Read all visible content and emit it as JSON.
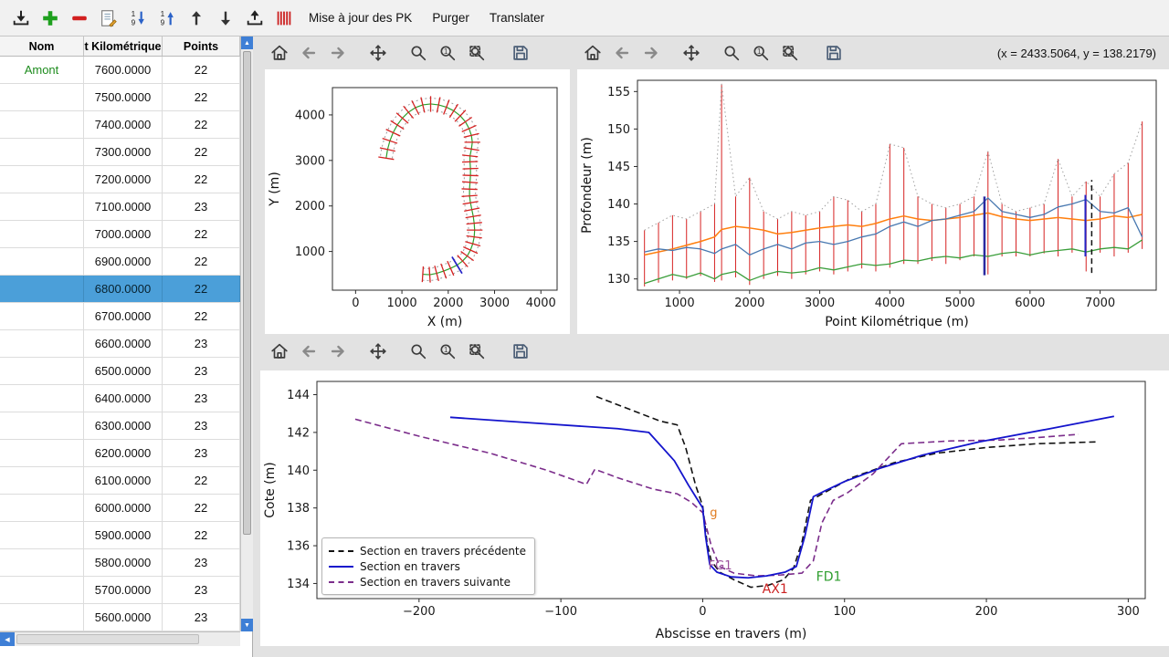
{
  "toolbar": {
    "icon_buttons": [
      "import",
      "add",
      "remove",
      "edit-list",
      "sort-desc",
      "sort-asc",
      "move-up",
      "move-down",
      "export",
      "pk-stripes"
    ],
    "buttons": {
      "update_pk": "Mise à jour des PK",
      "purger": "Purger",
      "translater": "Translater"
    }
  },
  "table": {
    "columns": [
      "Nom",
      "t Kilométrique",
      "Points"
    ],
    "selected_index": 8,
    "rows": [
      {
        "nom": "Amont",
        "pk": "7600.0000",
        "points": "22"
      },
      {
        "nom": "",
        "pk": "7500.0000",
        "points": "22"
      },
      {
        "nom": "",
        "pk": "7400.0000",
        "points": "22"
      },
      {
        "nom": "",
        "pk": "7300.0000",
        "points": "22"
      },
      {
        "nom": "",
        "pk": "7200.0000",
        "points": "22"
      },
      {
        "nom": "",
        "pk": "7100.0000",
        "points": "23"
      },
      {
        "nom": "",
        "pk": "7000.0000",
        "points": "22"
      },
      {
        "nom": "",
        "pk": "6900.0000",
        "points": "22"
      },
      {
        "nom": "",
        "pk": "6800.0000",
        "points": "22"
      },
      {
        "nom": "",
        "pk": "6700.0000",
        "points": "22"
      },
      {
        "nom": "",
        "pk": "6600.0000",
        "points": "23"
      },
      {
        "nom": "",
        "pk": "6500.0000",
        "points": "23"
      },
      {
        "nom": "",
        "pk": "6400.0000",
        "points": "23"
      },
      {
        "nom": "",
        "pk": "6300.0000",
        "points": "23"
      },
      {
        "nom": "",
        "pk": "6200.0000",
        "points": "23"
      },
      {
        "nom": "",
        "pk": "6100.0000",
        "points": "22"
      },
      {
        "nom": "",
        "pk": "6000.0000",
        "points": "22"
      },
      {
        "nom": "",
        "pk": "5900.0000",
        "points": "22"
      },
      {
        "nom": "",
        "pk": "5800.0000",
        "points": "23"
      },
      {
        "nom": "",
        "pk": "5700.0000",
        "points": "23"
      },
      {
        "nom": "",
        "pk": "5600.0000",
        "points": "23"
      }
    ]
  },
  "readout": "(x = 2433.5064,   y = 138.2179)",
  "plot_toolbar_icons": [
    "home",
    "back",
    "forward",
    "pan",
    "zoom",
    "zoom-1",
    "zoom-rect",
    "save"
  ],
  "chart_data": [
    {
      "id": "plan",
      "type": "line",
      "title": "",
      "xlabel": "X (m)",
      "ylabel": "Y (m)",
      "xlim": [
        -500,
        4350
      ],
      "ylim": [
        150,
        4600
      ],
      "xticks": [
        0,
        1000,
        2000,
        3000,
        4000
      ],
      "yticks": [
        1000,
        2000,
        3000,
        4000
      ],
      "margins": {
        "l": 74,
        "r": 14,
        "t": 20,
        "b": 48
      },
      "data": {
        "centerline": [
          [
            1450,
            500
          ],
          [
            1600,
            490
          ],
          [
            1750,
            520
          ],
          [
            1900,
            570
          ],
          [
            2050,
            630
          ],
          [
            2190,
            700
          ],
          [
            2310,
            790
          ],
          [
            2410,
            900
          ],
          [
            2480,
            1030
          ],
          [
            2530,
            1170
          ],
          [
            2560,
            1320
          ],
          [
            2570,
            1470
          ],
          [
            2560,
            1620
          ],
          [
            2540,
            1770
          ],
          [
            2510,
            1920
          ],
          [
            2480,
            2070
          ],
          [
            2460,
            2220
          ],
          [
            2460,
            2370
          ],
          [
            2470,
            2520
          ],
          [
            2480,
            2670
          ],
          [
            2480,
            2820
          ],
          [
            2470,
            2970
          ],
          [
            2470,
            3100
          ],
          [
            2500,
            3250
          ],
          [
            2520,
            3400
          ],
          [
            2500,
            3550
          ],
          [
            2450,
            3700
          ],
          [
            2370,
            3850
          ],
          [
            2260,
            3980
          ],
          [
            2120,
            4090
          ],
          [
            1960,
            4170
          ],
          [
            1790,
            4220
          ],
          [
            1620,
            4240
          ],
          [
            1450,
            4220
          ],
          [
            1290,
            4160
          ],
          [
            1140,
            4060
          ],
          [
            1010,
            3930
          ],
          [
            900,
            3780
          ],
          [
            810,
            3610
          ],
          [
            740,
            3430
          ],
          [
            690,
            3240
          ],
          [
            660,
            3050
          ]
        ]
      },
      "series": [
        {
          "kind": "offset",
          "points": "$centerline",
          "offset": 130,
          "color": "#9c9c9c",
          "width": 1,
          "dash": "2 3"
        },
        {
          "kind": "offset",
          "points": "$centerline",
          "offset": -130,
          "color": "#9c9c9c",
          "width": 1,
          "dash": "2 3"
        },
        {
          "kind": "line",
          "points": "$centerline",
          "color": "#2ca02c",
          "width": 1.2
        },
        {
          "kind": "ticks",
          "points": "$centerline",
          "halflen": 170,
          "color": "#d62222",
          "width": 1.3
        },
        {
          "kind": "ticks",
          "points": "$centerline",
          "halflen": 210,
          "color": "#2424c8",
          "width": 1.7,
          "indices": [
            5
          ]
        }
      ]
    },
    {
      "id": "profile",
      "type": "line",
      "title": "",
      "xlabel": "Point Kilométrique (m)",
      "ylabel": "Profondeur (m)",
      "xlim": [
        400,
        7800
      ],
      "ylim": [
        128.5,
        156.5
      ],
      "xticks": [
        1000,
        2000,
        3000,
        4000,
        5000,
        6000,
        7000
      ],
      "yticks": [
        130,
        135,
        140,
        145,
        150,
        155
      ],
      "margins": {
        "l": 66,
        "r": 14,
        "t": 12,
        "b": 48
      },
      "data": {
        "pk": [
          500,
          700,
          900,
          1100,
          1300,
          1500,
          1600,
          1800,
          2000,
          2200,
          2400,
          2600,
          2800,
          3000,
          3200,
          3400,
          3600,
          3800,
          4000,
          4200,
          4400,
          4600,
          4800,
          5000,
          5200,
          5400,
          5600,
          5800,
          6000,
          6200,
          6400,
          6600,
          6800,
          7000,
          7200,
          7400,
          7600
        ],
        "red_top": [
          136.5,
          137.5,
          138.5,
          138,
          139,
          140,
          156,
          141,
          143.5,
          139,
          138,
          139,
          138.5,
          139,
          141,
          140.5,
          139,
          140,
          148,
          147.5,
          141,
          140,
          139.5,
          140,
          141,
          147,
          140,
          139,
          139.5,
          140,
          146,
          141,
          143,
          141,
          144,
          145.5,
          151
        ],
        "red_bot": [
          129,
          129.5,
          129.8,
          130,
          130.4,
          129.6,
          129.8,
          130.2,
          129.2,
          130,
          130.4,
          130,
          130.6,
          131,
          130.6,
          131,
          131.4,
          131,
          131.5,
          132,
          132,
          132.4,
          132,
          132.5,
          133,
          130.6,
          133,
          133,
          133,
          133.4,
          133,
          133.5,
          131,
          133.5,
          133,
          133.5,
          134
        ],
        "blue": [
          133.6,
          134,
          133.8,
          134.2,
          134,
          133.4,
          134,
          134.6,
          133.2,
          134,
          134.6,
          134,
          134.8,
          135,
          134.6,
          135,
          135.6,
          136,
          137,
          137.6,
          137,
          137.8,
          138,
          138.5,
          139,
          140.8,
          139,
          138.6,
          138.2,
          138.6,
          139.6,
          140,
          140.6,
          139,
          138.8,
          139.5,
          135.6
        ],
        "orange": [
          133.2,
          133.6,
          134,
          134.5,
          135,
          135.6,
          136.6,
          137,
          136.8,
          136.5,
          136,
          136.2,
          136.5,
          136.8,
          137,
          137.2,
          137,
          137.4,
          138,
          138.4,
          138,
          137.8,
          138,
          138.2,
          138.5,
          138.8,
          138.3,
          138,
          137.8,
          138,
          138.2,
          138,
          137.8,
          138,
          138.4,
          138.2,
          138.6
        ],
        "green": [
          129.4,
          130,
          130.6,
          130.2,
          130.8,
          130,
          130.6,
          131,
          129.8,
          130.5,
          131,
          130.8,
          131,
          131.5,
          131.2,
          131.6,
          132,
          131.8,
          132,
          132.5,
          132.4,
          132.8,
          133,
          132.8,
          133.2,
          133,
          133.4,
          133.6,
          133.2,
          133.6,
          133.8,
          134,
          133.6,
          134,
          134.2,
          134,
          135.2
        ]
      },
      "series": [
        {
          "kind": "vlines",
          "x": "$pk",
          "y1": "$red_bot",
          "y2": "$red_top",
          "color": "#d62222",
          "width": 1
        },
        {
          "kind": "xyline",
          "x": "$pk",
          "y": "$red_top",
          "color": "#a0a0a0",
          "width": 1,
          "dash": "1.5 3"
        },
        {
          "kind": "xyline",
          "x": "$pk",
          "y": "$green",
          "color": "#3a9e3a",
          "width": 1.3
        },
        {
          "kind": "xyline",
          "x": "$pk",
          "y": "$orange",
          "color": "#ff7f0e",
          "width": 1.5
        },
        {
          "kind": "xyline",
          "x": "$pk",
          "y": "$blue",
          "color": "#4878b0",
          "width": 1.3
        },
        {
          "kind": "vline",
          "x": 5350,
          "y1": 130.5,
          "y2": 141,
          "color": "#2a2aa0",
          "width": 2.5
        },
        {
          "kind": "vline",
          "x": 6790,
          "y1": 133,
          "y2": 141.2,
          "color": "#2424c8",
          "width": 2
        },
        {
          "kind": "vline",
          "x": 6880,
          "y1": 130.8,
          "y2": 143.2,
          "color": "#111111",
          "width": 1.5,
          "dash": "6 4"
        }
      ]
    },
    {
      "id": "section",
      "type": "line",
      "title": "",
      "xlabel": "Abscisse en travers (m)",
      "ylabel": "Cote (m)",
      "xlim": [
        -272,
        312
      ],
      "ylim": [
        133.2,
        144.7
      ],
      "xticks": [
        -200,
        -100,
        0,
        100,
        200,
        300
      ],
      "yticks": [
        134,
        136,
        138,
        140,
        142,
        144
      ],
      "margins": {
        "l": 62,
        "r": 26,
        "t": 12,
        "b": 52
      },
      "data": {},
      "series": [
        {
          "kind": "line",
          "color": "#111111",
          "width": 1.6,
          "dash": "7 4",
          "points": [
            [
              -75,
              143.9
            ],
            [
              -30,
              142.6
            ],
            [
              -18,
              142.4
            ],
            [
              -12,
              141.2
            ],
            [
              -5,
              139.2
            ],
            [
              0,
              138.1
            ],
            [
              3,
              136.2
            ],
            [
              6,
              135.2
            ],
            [
              12,
              134.6
            ],
            [
              22,
              134.2
            ],
            [
              34,
              133.8
            ],
            [
              46,
              133.9
            ],
            [
              57,
              134.2
            ],
            [
              64,
              134.8
            ],
            [
              70,
              136.2
            ],
            [
              76,
              138.4
            ],
            [
              88,
              138.9
            ],
            [
              105,
              139.6
            ],
            [
              135,
              140.4
            ],
            [
              165,
              140.9
            ],
            [
              200,
              141.2
            ],
            [
              235,
              141.4
            ],
            [
              278,
              141.5
            ]
          ]
        },
        {
          "kind": "line",
          "color": "#7b2d8b",
          "width": 1.6,
          "dash": "7 4",
          "points": [
            [
              -245,
              142.7
            ],
            [
              -200,
              141.8
            ],
            [
              -150,
              140.9
            ],
            [
              -110,
              140.0
            ],
            [
              -82,
              139.25
            ],
            [
              -76,
              140.05
            ],
            [
              -60,
              139.6
            ],
            [
              -35,
              139.0
            ],
            [
              -18,
              138.75
            ],
            [
              -8,
              138.3
            ],
            [
              0,
              137.75
            ],
            [
              6,
              136.0
            ],
            [
              12,
              134.9
            ],
            [
              22,
              134.55
            ],
            [
              38,
              134.4
            ],
            [
              55,
              134.45
            ],
            [
              70,
              134.55
            ],
            [
              78,
              135.2
            ],
            [
              84,
              137.2
            ],
            [
              92,
              138.4
            ],
            [
              102,
              138.8
            ],
            [
              120,
              139.8
            ],
            [
              140,
              141.4
            ],
            [
              175,
              141.55
            ],
            [
              210,
              141.6
            ],
            [
              240,
              141.75
            ],
            [
              265,
              141.9
            ]
          ]
        },
        {
          "kind": "line",
          "color": "#1414cc",
          "width": 1.8,
          "points": [
            [
              -178,
              142.8
            ],
            [
              -120,
              142.5
            ],
            [
              -60,
              142.2
            ],
            [
              -38,
              142.0
            ],
            [
              -20,
              140.5
            ],
            [
              -10,
              139.2
            ],
            [
              0,
              138.0
            ],
            [
              2,
              136.5
            ],
            [
              5,
              135.0
            ],
            [
              10,
              134.6
            ],
            [
              20,
              134.35
            ],
            [
              32,
              134.3
            ],
            [
              45,
              134.4
            ],
            [
              58,
              134.6
            ],
            [
              66,
              134.9
            ],
            [
              72,
              136.5
            ],
            [
              78,
              138.6
            ],
            [
              86,
              138.9
            ],
            [
              100,
              139.4
            ],
            [
              125,
              140.1
            ],
            [
              155,
              140.8
            ],
            [
              195,
              141.5
            ],
            [
              245,
              142.2
            ],
            [
              290,
              142.85
            ]
          ]
        }
      ],
      "annotations": [
        {
          "x": 5,
          "y": 137.55,
          "text": "g",
          "color": "#e07b20",
          "size": 13
        },
        {
          "x": 4,
          "y": 134.75,
          "text": "FG1",
          "color": "#9b4f9b",
          "size": 13
        },
        {
          "x": 42,
          "y": 133.5,
          "text": "AX1",
          "color": "#cc2222",
          "size": 14
        },
        {
          "x": 80,
          "y": 134.15,
          "text": "FD1",
          "color": "#2e9e2e",
          "size": 14
        }
      ],
      "legend": [
        {
          "label": "Section en travers précédente"
        },
        {
          "label": "Section en travers"
        },
        {
          "label": "Section en travers suivante"
        }
      ]
    }
  ]
}
